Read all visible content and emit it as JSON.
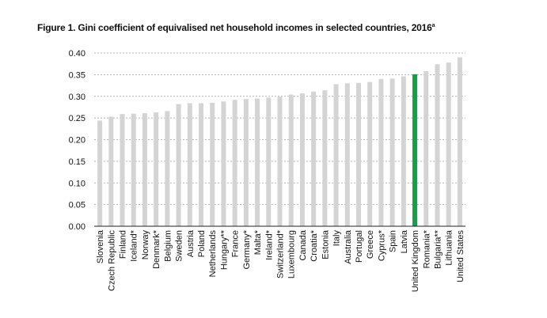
{
  "figure": {
    "title": "Figure 1. Gini coefficient of equivalised net household incomes in selected countries, 2016",
    "title_superscript": "a"
  },
  "chart_data": {
    "type": "bar",
    "categories": [
      "Slovenia",
      "Czech Republic",
      "Finland",
      "Iceland*",
      "Norway",
      "Denmark*",
      "Belgium",
      "Sweden",
      "Austria",
      "Poland",
      "Netherlands",
      "Hungary**",
      "France",
      "Germany*",
      "Malta*",
      "Ireland*",
      "Switzerland*",
      "Luxembourg",
      "Canada",
      "Croatia*",
      "Estonia",
      "Italy",
      "Australia",
      "Portugal",
      "Greece",
      "Cyprus*",
      "Spain",
      "Latvia",
      "United Kingdom",
      "Romania*",
      "Bulgaria**",
      "Lithuania",
      "United States"
    ],
    "values": [
      0.244,
      0.253,
      0.259,
      0.26,
      0.261,
      0.263,
      0.266,
      0.282,
      0.284,
      0.284,
      0.285,
      0.288,
      0.292,
      0.294,
      0.295,
      0.297,
      0.299,
      0.304,
      0.307,
      0.311,
      0.314,
      0.328,
      0.33,
      0.331,
      0.333,
      0.34,
      0.341,
      0.346,
      0.351,
      0.358,
      0.374,
      0.378,
      0.39
    ],
    "highlight": "United Kingdom",
    "y_ticks": [
      "0.00",
      "0.05",
      "0.10",
      "0.15",
      "0.20",
      "0.25",
      "0.30",
      "0.35",
      "0.40"
    ],
    "ylim": [
      0,
      0.4
    ],
    "grid": "horizontal dashed",
    "colors": {
      "bar": "#d4d4d4",
      "highlight": "#1e9a4c",
      "grid": "#9a9a9a",
      "axis": "#222222"
    }
  }
}
